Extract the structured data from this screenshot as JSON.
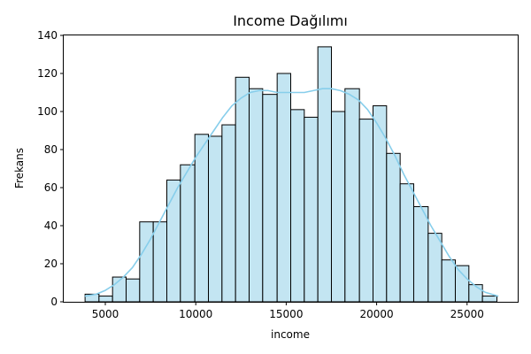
{
  "chart_data": {
    "type": "bar",
    "title": "Income Dağılımı",
    "xlabel": "income",
    "ylabel": "Frekans",
    "xlim": [
      2700,
      27800
    ],
    "ylim": [
      0,
      140
    ],
    "x_ticks": [
      5000,
      10000,
      15000,
      20000,
      25000
    ],
    "y_ticks": [
      0,
      20,
      40,
      60,
      80,
      100,
      120,
      140
    ],
    "grid": false,
    "bar_color": "#C3E5F2",
    "edge_color": "#000000",
    "kde_color": "#87CEEB",
    "bins": [
      {
        "start": 3880,
        "end": 4650,
        "count": 4
      },
      {
        "start": 4650,
        "end": 5400,
        "count": 3
      },
      {
        "start": 5400,
        "end": 6150,
        "count": 13
      },
      {
        "start": 6150,
        "end": 6900,
        "count": 12
      },
      {
        "start": 6900,
        "end": 7650,
        "count": 42
      },
      {
        "start": 7650,
        "end": 8400,
        "count": 42
      },
      {
        "start": 8400,
        "end": 9150,
        "count": 64
      },
      {
        "start": 9150,
        "end": 9950,
        "count": 72
      },
      {
        "start": 9950,
        "end": 10700,
        "count": 88
      },
      {
        "start": 10700,
        "end": 11450,
        "count": 87
      },
      {
        "start": 11450,
        "end": 12200,
        "count": 93
      },
      {
        "start": 12200,
        "end": 12950,
        "count": 118
      },
      {
        "start": 12950,
        "end": 13700,
        "count": 112
      },
      {
        "start": 13700,
        "end": 14500,
        "count": 109
      },
      {
        "start": 14500,
        "end": 15250,
        "count": 120
      },
      {
        "start": 15250,
        "end": 16000,
        "count": 101
      },
      {
        "start": 16000,
        "end": 16750,
        "count": 97
      },
      {
        "start": 16750,
        "end": 17500,
        "count": 134
      },
      {
        "start": 17500,
        "end": 18250,
        "count": 100
      },
      {
        "start": 18250,
        "end": 19050,
        "count": 112
      },
      {
        "start": 19050,
        "end": 19800,
        "count": 96
      },
      {
        "start": 19800,
        "end": 20550,
        "count": 103
      },
      {
        "start": 20550,
        "end": 21300,
        "count": 78
      },
      {
        "start": 21300,
        "end": 22050,
        "count": 62
      },
      {
        "start": 22050,
        "end": 22850,
        "count": 50
      },
      {
        "start": 22850,
        "end": 23600,
        "count": 36
      },
      {
        "start": 23600,
        "end": 24350,
        "count": 22
      },
      {
        "start": 24350,
        "end": 25100,
        "count": 19
      },
      {
        "start": 25100,
        "end": 25850,
        "count": 9
      },
      {
        "start": 25850,
        "end": 26650,
        "count": 3
      }
    ],
    "kde": {
      "x": [
        3900,
        4500,
        5000,
        5500,
        6000,
        6500,
        7000,
        7500,
        8000,
        8500,
        9000,
        9500,
        10000,
        10500,
        11000,
        11500,
        12000,
        12500,
        13000,
        13500,
        14000,
        14500,
        15000,
        15500,
        16000,
        16500,
        17000,
        17500,
        18000,
        18500,
        19000,
        19500,
        20000,
        20500,
        21000,
        21500,
        22000,
        22500,
        23000,
        23500,
        24000,
        24500,
        25000,
        25500,
        26000,
        26700
      ],
      "y": [
        3,
        4,
        6,
        9,
        13,
        18,
        25,
        33,
        42,
        51,
        60,
        68,
        76,
        83,
        90,
        97,
        103,
        107,
        110,
        111,
        111,
        110,
        110,
        110,
        110,
        111,
        112,
        112,
        111,
        109,
        106,
        101,
        94,
        86,
        77,
        67,
        58,
        49,
        40,
        32,
        24,
        17,
        12,
        8,
        5,
        3
      ]
    }
  }
}
